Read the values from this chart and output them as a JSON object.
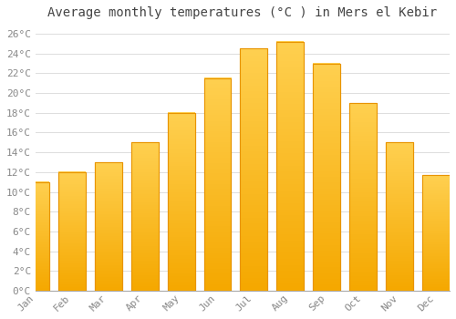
{
  "title": "Average monthly temperatures (°C ) in Mers el Kebir",
  "months": [
    "Jan",
    "Feb",
    "Mar",
    "Apr",
    "May",
    "Jun",
    "Jul",
    "Aug",
    "Sep",
    "Oct",
    "Nov",
    "Dec"
  ],
  "values": [
    11,
    12,
    13,
    15,
    18,
    21.5,
    24.5,
    25.2,
    23,
    19,
    15,
    11.7
  ],
  "bar_color_top": "#FFC72C",
  "bar_color_bottom": "#F5A800",
  "bar_edge_color": "#E89400",
  "background_color": "#FFFFFF",
  "grid_color": "#DDDDDD",
  "text_color": "#888888",
  "title_color": "#444444",
  "ylim": [
    0,
    27
  ],
  "yticks": [
    0,
    2,
    4,
    6,
    8,
    10,
    12,
    14,
    16,
    18,
    20,
    22,
    24,
    26
  ],
  "title_fontsize": 10,
  "tick_fontsize": 8,
  "font_family": "monospace"
}
